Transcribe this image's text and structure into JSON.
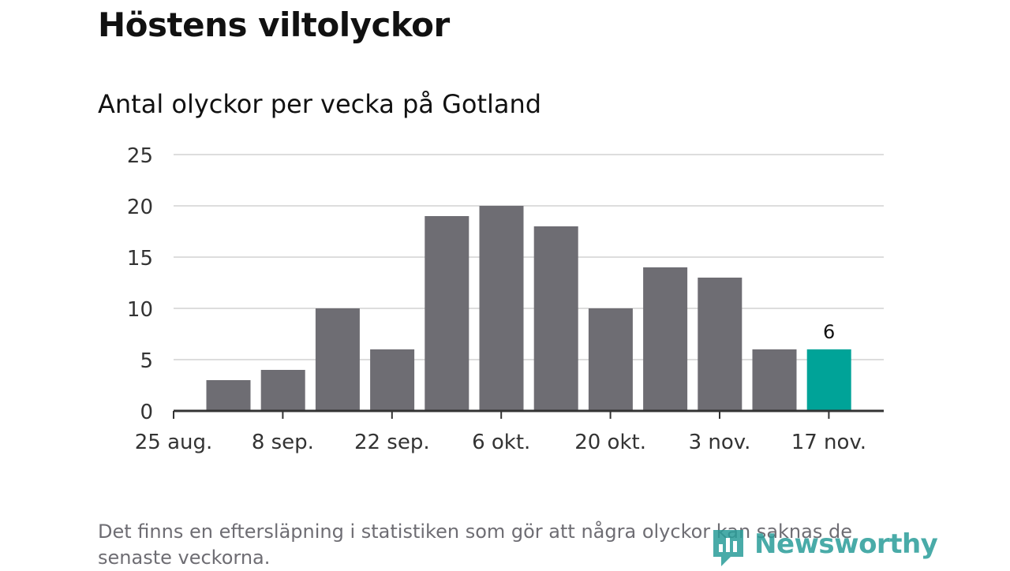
{
  "header": {
    "title": "Höstens viltolyckor",
    "subtitle": "Antal olyckor per vecka på Gotland"
  },
  "chart_data": {
    "type": "bar",
    "title": "Höstens viltolyckor",
    "subtitle": "Antal olyckor per vecka på Gotland",
    "xlabel": "",
    "ylabel": "",
    "categories": [
      "",
      "",
      "",
      "",
      "",
      "",
      "",
      "",
      "",
      "",
      "",
      ""
    ],
    "values": [
      3,
      4,
      10,
      6,
      19,
      20,
      18,
      10,
      14,
      13,
      6,
      6
    ],
    "highlight_index": 11,
    "highlight_label": "6",
    "x_tick_labels": [
      "25 aug.",
      "8 sep.",
      "22 sep.",
      "6 okt.",
      "20 okt.",
      "3 nov.",
      "17 nov."
    ],
    "y_ticks": [
      "0",
      "5",
      "10",
      "15",
      "20",
      "25"
    ],
    "ylim": [
      0,
      25
    ],
    "grid": true,
    "colors": {
      "bar": "#6e6d73",
      "highlight": "#00a398",
      "grid": "#dddddd",
      "axis": "#333333"
    }
  },
  "footer": {
    "note": "Det finns en eftersläpning i statistiken som gör att några olyckor kan saknas de senaste veckorna.",
    "brand": "Newsworthy",
    "brand_icon": "newsworthy-logo-icon",
    "brand_color": "#2a9d99"
  }
}
